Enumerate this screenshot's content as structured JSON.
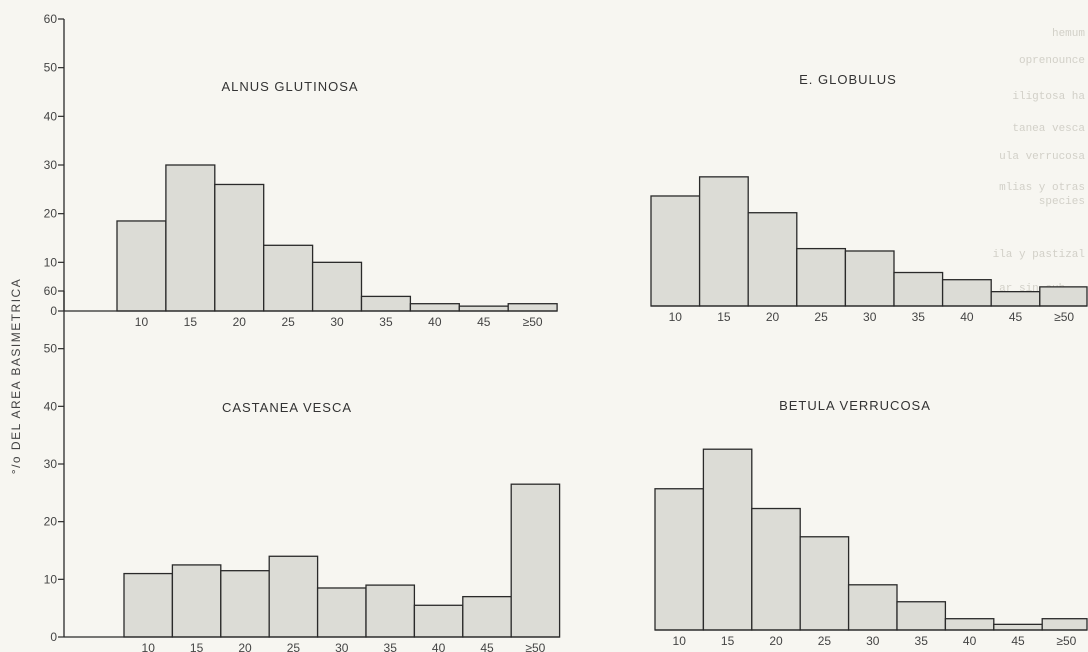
{
  "figure": {
    "ylabel": "°/o DEL AREA BASIMETRICA"
  },
  "colors": {
    "bar_fill": "#dcdcd6",
    "bar_stroke": "#2a2a2a",
    "background": "#f7f6f1"
  },
  "background_text": [
    "hemum",
    "oprenounce",
    "iligtosa ha",
    "tanea vesca",
    "ula verrucosa",
    "mlias y otras",
    "species",
    "ila y pastizal",
    "ar sin cub..."
  ],
  "chart_data": [
    {
      "type": "bar",
      "title": "ALNUS GLUTINOSA",
      "categories": [
        "10",
        "15",
        "20",
        "25",
        "30",
        "35",
        "40",
        "45",
        "≥50"
      ],
      "values": [
        18.5,
        30,
        26,
        13.5,
        10,
        3,
        1.5,
        1,
        1.5
      ],
      "ylim": [
        0,
        60
      ],
      "yticks": [
        0,
        10,
        20,
        30,
        40,
        50,
        60
      ],
      "xlabel": "",
      "ylabel": "°/o DEL AREA BASIMETRICA",
      "grid": false
    },
    {
      "type": "bar",
      "title": "E. GLOBULUS",
      "categories": [
        "10",
        "15",
        "20",
        "25",
        "30",
        "35",
        "40",
        "45",
        "≥50"
      ],
      "values": [
        23,
        27,
        19.5,
        12,
        11.5,
        7,
        5.5,
        3,
        4
      ],
      "ylim": [
        0,
        60
      ],
      "yticks": [],
      "xlabel": "",
      "ylabel": "",
      "grid": false
    },
    {
      "type": "bar",
      "title": "CASTANEA VESCA",
      "categories": [
        "10",
        "15",
        "20",
        "25",
        "30",
        "35",
        "40",
        "45",
        "≥50"
      ],
      "values": [
        11,
        12.5,
        11.5,
        14,
        8.5,
        9,
        5.5,
        7,
        26.5
      ],
      "ylim": [
        0,
        60
      ],
      "yticks": [
        0,
        10,
        20,
        30,
        40,
        50,
        60
      ],
      "xlabel": "",
      "ylabel": "°/o DEL AREA BASIMETRICA",
      "grid": false
    },
    {
      "type": "bar",
      "title": "BETULA VERRUCOSA",
      "categories": [
        "10",
        "15",
        "20",
        "25",
        "30",
        "35",
        "40",
        "45",
        "≥50"
      ],
      "values": [
        25,
        32,
        21.5,
        16.5,
        8,
        5,
        2,
        1,
        2
      ],
      "ylim": [
        0,
        60
      ],
      "yticks": [],
      "xlabel": "",
      "ylabel": "",
      "grid": false
    }
  ]
}
